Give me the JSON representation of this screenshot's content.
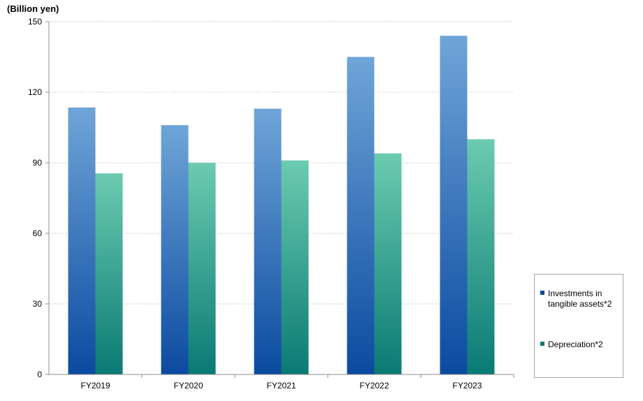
{
  "unit_label": "(Billion yen)",
  "colors": {
    "investments_top": "#6fa5d8",
    "investments_bottom": "#0b4aa0",
    "depreciation_top": "#6ccbb0",
    "depreciation_bottom": "#0a7a74",
    "grid": "#c8c8c8",
    "axis": "#8c8c8c"
  },
  "chart_data": {
    "type": "bar",
    "categories": [
      "FY2019",
      "FY2020",
      "FY2021",
      "FY2022",
      "FY2023"
    ],
    "series": [
      {
        "name": "Investments in tangible assets*2",
        "values": [
          113.5,
          106,
          113,
          135,
          144
        ]
      },
      {
        "name": "Depreciation*2",
        "values": [
          85.5,
          90,
          91,
          94,
          100
        ]
      }
    ],
    "ylim": [
      0,
      150
    ],
    "yticks": [
      0,
      30,
      60,
      90,
      120,
      150
    ],
    "ylabel": "(Billion yen)",
    "grid": true,
    "legend": "right-bottom"
  }
}
